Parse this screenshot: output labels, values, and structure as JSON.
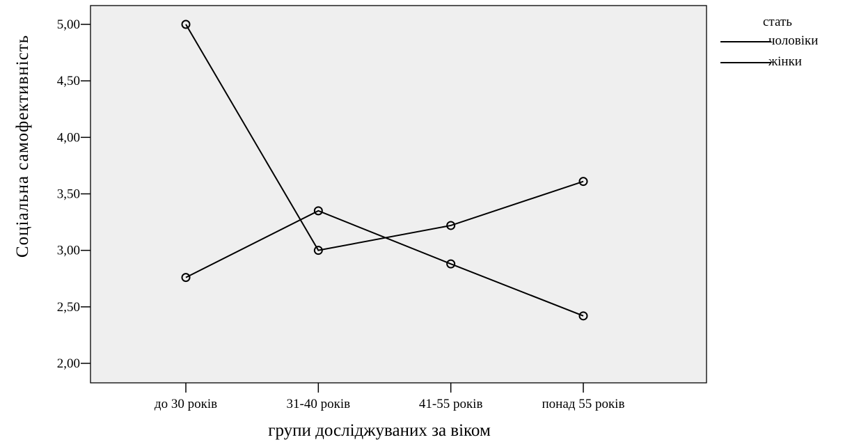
{
  "chart_data": {
    "type": "line",
    "xlabel": "групи досліджуваних за віком",
    "ylabel": "Соціальна самофективність",
    "categories": [
      "до 30 років",
      "31-40 років",
      "41-55 років",
      "понад 55 років"
    ],
    "yticks": [
      "2,00",
      "2,50",
      "3,00",
      "3,50",
      "4,00",
      "4,50",
      "5,00"
    ],
    "ylim": [
      1.93,
      5.2
    ],
    "legend": {
      "title": "стать",
      "placement": "top-right"
    },
    "series": [
      {
        "name": "чоловіки",
        "values": [
          5.0,
          3.0,
          3.22,
          3.61
        ],
        "color": "#000000"
      },
      {
        "name": "жінки",
        "values": [
          2.76,
          3.35,
          2.88,
          2.42
        ],
        "color": "#000000"
      }
    ],
    "plot_background": "#efefef",
    "marker": "open-circle",
    "grid": false
  }
}
